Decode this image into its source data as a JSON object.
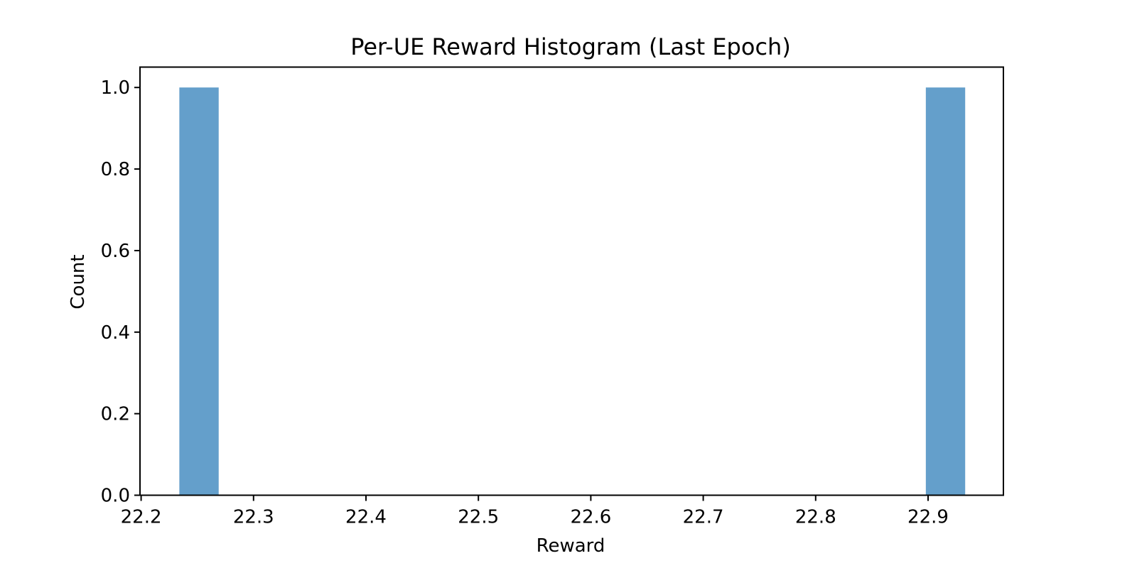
{
  "chart_data": {
    "type": "bar",
    "title": "Per-UE Reward Histogram (Last Epoch)",
    "xlabel": "Reward",
    "ylabel": "Count",
    "xlim": [
      22.199,
      22.967
    ],
    "ylim": [
      0,
      1.05
    ],
    "x_ticks": [
      22.2,
      22.3,
      22.4,
      22.5,
      22.6,
      22.7,
      22.8,
      22.9
    ],
    "x_tick_labels": [
      "22.2",
      "22.3",
      "22.4",
      "22.5",
      "22.6",
      "22.7",
      "22.8",
      "22.9"
    ],
    "y_ticks": [
      0.0,
      0.2,
      0.4,
      0.6,
      0.8,
      1.0
    ],
    "y_tick_labels": [
      "0.0",
      "0.2",
      "0.4",
      "0.6",
      "0.8",
      "1.0"
    ],
    "bins": [
      {
        "x_start": 22.234,
        "x_end": 22.269,
        "count": 1
      },
      {
        "x_start": 22.898,
        "x_end": 22.933,
        "count": 1
      }
    ],
    "bar_color": "#649fcb",
    "grid": false,
    "legend": "none"
  }
}
